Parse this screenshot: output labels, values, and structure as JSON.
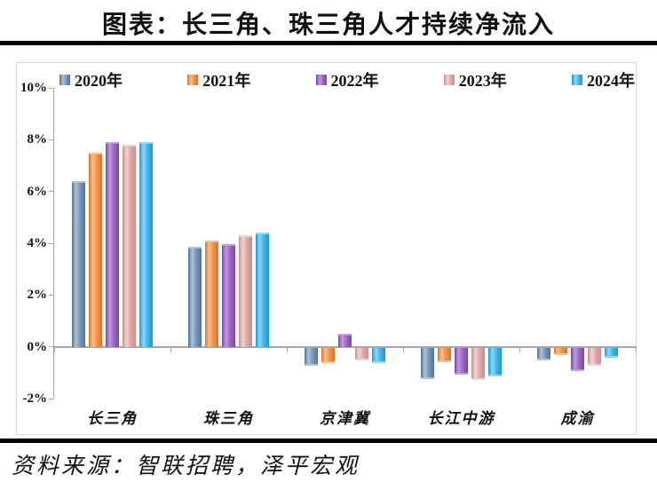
{
  "page": {
    "title": "图表：长三角、珠三角人才持续净流入",
    "source_note": "资料来源：智联招聘，泽平宏观"
  },
  "colors": {
    "rule": "#000000",
    "axis": "#a6a6a6",
    "frame": "#d9d9d9",
    "text": "#111111",
    "background": "#ffffff"
  },
  "chart_data": {
    "type": "bar",
    "title": "图表：长三角、珠三角人才持续净流入",
    "categories": [
      "长三角",
      "珠三角",
      "京津冀",
      "长江中游",
      "成渝"
    ],
    "series": [
      {
        "name": "2020年",
        "color": "#7595b9",
        "color_dark": "#4e749c",
        "color_light": "#adc2d6",
        "values": [
          6.4,
          3.85,
          -0.7,
          -1.2,
          -0.5
        ]
      },
      {
        "name": "2021年",
        "color": "#f0914a",
        "color_dark": "#dd7128",
        "color_light": "#f9c08c",
        "values": [
          7.5,
          4.1,
          -0.6,
          -0.55,
          -0.3
        ]
      },
      {
        "name": "2022年",
        "color": "#9b66c5",
        "color_dark": "#7a45a5",
        "color_light": "#c39ade",
        "values": [
          7.9,
          3.95,
          0.5,
          -1.05,
          -0.9
        ]
      },
      {
        "name": "2023年",
        "color": "#dda6a6",
        "color_dark": "#c98e8e",
        "color_light": "#f1d2d2",
        "values": [
          7.8,
          4.3,
          -0.5,
          -1.25,
          -0.7
        ]
      },
      {
        "name": "2024年",
        "color": "#41b4e9",
        "color_dark": "#1899d6",
        "color_light": "#90d7f8",
        "values": [
          7.9,
          4.4,
          -0.6,
          -1.1,
          -0.4
        ]
      }
    ],
    "xlabel": "",
    "ylabel": "",
    "ylim": [
      -2,
      10
    ],
    "yticks": [
      10,
      8,
      6,
      4,
      2,
      0,
      -2
    ],
    "ytick_labels": [
      "10%",
      "8%",
      "6%",
      "4%",
      "2%",
      "0%",
      "-2%"
    ],
    "grid": false,
    "legend_position": "top"
  }
}
